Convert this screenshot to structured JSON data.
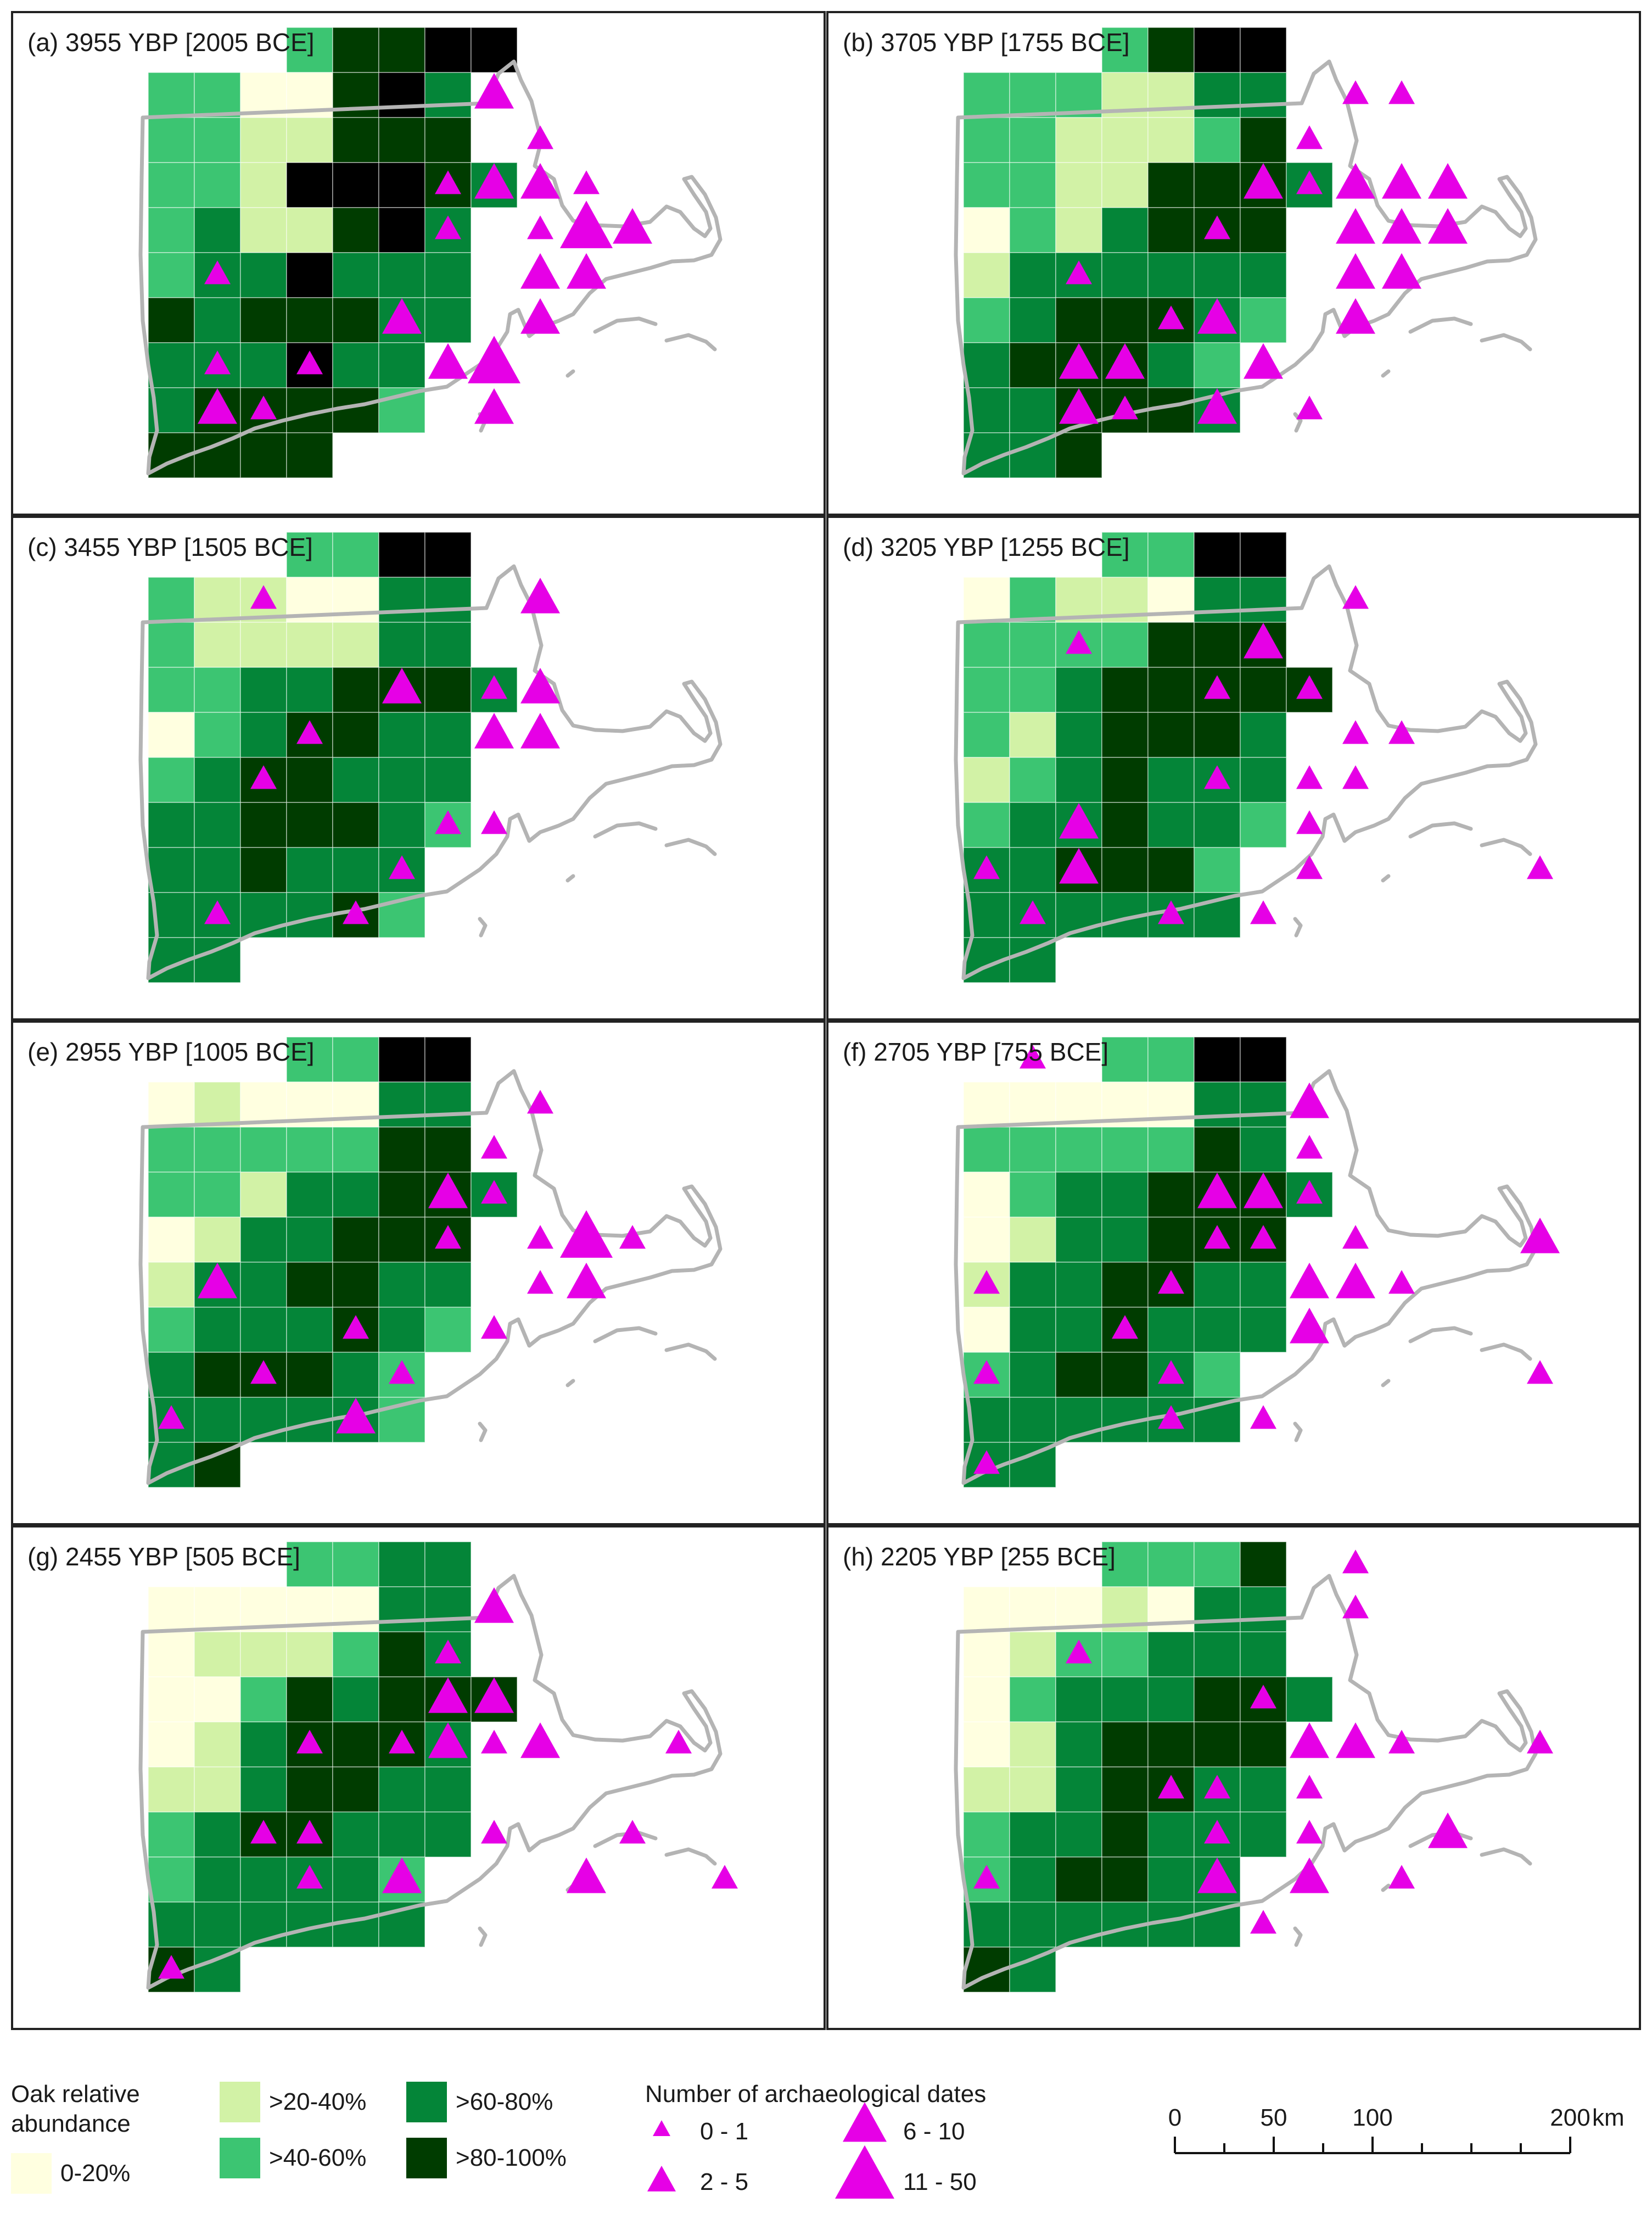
{
  "panels": [
    {
      "label": "(a) 3955 YBP [2005 BCE]",
      "grid": [
        "...35566",
        "3311564",
        "3322555.",
        "33266654.",
        "3422564",
        "3446444",
        "5455544",
        "444644",
        "455553",
        "5555"
      ],
      "sites": [
        [
          2,
          8,
          1
        ],
        [
          1,
          7,
          2
        ],
        [
          3,
          6,
          1
        ],
        [
          3,
          7,
          2
        ],
        [
          3,
          8,
          2
        ],
        [
          3,
          9,
          1
        ],
        [
          4,
          6,
          1
        ],
        [
          4,
          8,
          1
        ],
        [
          4,
          9,
          3
        ],
        [
          4,
          10,
          2
        ],
        [
          5,
          8,
          2
        ],
        [
          5,
          9,
          2
        ],
        [
          5,
          1,
          1
        ],
        [
          6,
          8,
          2
        ],
        [
          6,
          5,
          2
        ],
        [
          7,
          1,
          1
        ],
        [
          7,
          3,
          1
        ],
        [
          7,
          6,
          2
        ],
        [
          7,
          7,
          3
        ],
        [
          8,
          1,
          2
        ],
        [
          8,
          2,
          1
        ],
        [
          8,
          7,
          2
        ]
      ]
    },
    {
      "label": "(b) 3705 YBP [1755 BCE]",
      "grid": [
        "...3566",
        "3332244",
        "3322235.",
        "33225554.",
        "1324555",
        "2444444",
        "3455543",
        "455543",
        "445554",
        "445"
      ],
      "sites": [
        [
          1,
          8,
          1
        ],
        [
          1,
          9,
          1
        ],
        [
          2,
          7,
          1
        ],
        [
          3,
          6,
          2
        ],
        [
          3,
          7,
          1
        ],
        [
          3,
          8,
          2
        ],
        [
          3,
          9,
          2
        ],
        [
          3,
          10,
          2
        ],
        [
          4,
          5,
          1
        ],
        [
          4,
          8,
          2
        ],
        [
          4,
          9,
          2
        ],
        [
          4,
          10,
          2
        ],
        [
          5,
          2,
          1
        ],
        [
          5,
          8,
          2
        ],
        [
          5,
          9,
          2
        ],
        [
          6,
          4,
          1
        ],
        [
          6,
          5,
          2
        ],
        [
          6,
          8,
          2
        ],
        [
          7,
          2,
          2
        ],
        [
          7,
          3,
          2
        ],
        [
          7,
          6,
          2
        ],
        [
          8,
          2,
          2
        ],
        [
          8,
          3,
          1
        ],
        [
          8,
          5,
          2
        ],
        [
          8,
          7,
          1
        ]
      ]
    },
    {
      "label": "(c) 3455 YBP [1505 BCE]",
      "grid": [
        "...3366",
        "3221144",
        "3222244",
        "33445554.",
        "1345544",
        "3455444",
        "4455543",
        "445444",
        "444453",
        "44"
      ],
      "sites": [
        [
          1,
          2,
          1
        ],
        [
          1,
          8,
          2
        ],
        [
          3,
          5,
          2
        ],
        [
          3,
          7,
          1
        ],
        [
          3,
          8,
          2
        ],
        [
          4,
          3,
          1
        ],
        [
          4,
          7,
          2
        ],
        [
          4,
          8,
          2
        ],
        [
          5,
          2,
          1
        ],
        [
          6,
          6,
          1
        ],
        [
          6,
          7,
          1
        ],
        [
          7,
          5,
          1
        ],
        [
          8,
          1,
          1
        ],
        [
          8,
          4,
          1
        ]
      ]
    },
    {
      "label": "(d) 3205 YBP [1255 BCE]",
      "grid": [
        "...3366",
        "1322144",
        "3333555",
        "33455555.",
        "3245554",
        "2345444",
        "3445443",
        "445553",
        "444444",
        "44"
      ],
      "sites": [
        [
          1,
          8,
          1
        ],
        [
          2,
          2,
          1
        ],
        [
          2,
          6,
          2
        ],
        [
          3,
          5,
          1
        ],
        [
          3,
          7,
          1
        ],
        [
          4,
          8,
          1
        ],
        [
          4,
          9,
          1
        ],
        [
          5,
          5,
          1
        ],
        [
          5,
          7,
          1
        ],
        [
          5,
          8,
          1
        ],
        [
          6,
          2,
          2
        ],
        [
          6,
          7,
          1
        ],
        [
          7,
          0,
          1
        ],
        [
          7,
          2,
          2
        ],
        [
          7,
          7,
          1
        ],
        [
          8,
          1,
          1
        ],
        [
          8,
          4,
          1
        ],
        [
          8,
          6,
          1
        ],
        [
          7,
          12,
          1
        ]
      ]
    },
    {
      "label": "(e) 2955 YBP [1005 BCE]",
      "grid": [
        "...3366",
        "1211144",
        "3333355",
        "33244554.",
        "1244555",
        "2445544",
        "3444543",
        "455543",
        "444443",
        "45"
      ],
      "sites": [
        [
          1,
          8,
          1
        ],
        [
          2,
          7,
          1
        ],
        [
          3,
          6,
          2
        ],
        [
          3,
          7,
          1
        ],
        [
          4,
          6,
          1
        ],
        [
          4,
          8,
          1
        ],
        [
          4,
          9,
          3
        ],
        [
          4,
          10,
          1
        ],
        [
          5,
          1,
          2
        ],
        [
          5,
          8,
          1
        ],
        [
          5,
          9,
          2
        ],
        [
          6,
          4,
          1
        ],
        [
          6,
          7,
          1
        ],
        [
          7,
          2,
          1
        ],
        [
          7,
          5,
          1
        ],
        [
          8,
          4,
          2
        ],
        [
          8,
          0,
          1
        ]
      ]
    },
    {
      "label": "(f) 2705 YBP [755 BCE]",
      "grid": [
        "...3366",
        "1111144",
        "3333354",
        "13445554.",
        "1244555",
        "2445544",
        "1445444",
        "345543",
        "444444",
        "44"
      ],
      "sites": [
        [
          0,
          1,
          1
        ],
        [
          1,
          7,
          2
        ],
        [
          2,
          7,
          1
        ],
        [
          3,
          5,
          2
        ],
        [
          3,
          6,
          2
        ],
        [
          3,
          7,
          1
        ],
        [
          4,
          5,
          1
        ],
        [
          4,
          6,
          1
        ],
        [
          4,
          8,
          1
        ],
        [
          4,
          12,
          2
        ],
        [
          5,
          0,
          1
        ],
        [
          5,
          4,
          1
        ],
        [
          5,
          7,
          2
        ],
        [
          5,
          8,
          2
        ],
        [
          5,
          9,
          1
        ],
        [
          6,
          3,
          1
        ],
        [
          6,
          7,
          2
        ],
        [
          7,
          0,
          1
        ],
        [
          7,
          4,
          1
        ],
        [
          7,
          12,
          1
        ],
        [
          8,
          4,
          1
        ],
        [
          8,
          6,
          1
        ],
        [
          9,
          0,
          1
        ]
      ]
    },
    {
      "label": "(g) 2455 YBP [505 BCE]",
      "grid": [
        "...3344",
        "1111144",
        "1222354",
        "11354555.",
        "1245554",
        "2245544",
        "3455444",
        "344443",
        "444444",
        "54"
      ],
      "sites": [
        [
          1,
          7,
          2
        ],
        [
          2,
          6,
          1
        ],
        [
          3,
          6,
          2
        ],
        [
          3,
          7,
          2
        ],
        [
          4,
          3,
          1
        ],
        [
          4,
          5,
          1
        ],
        [
          4,
          6,
          2
        ],
        [
          4,
          7,
          1
        ],
        [
          4,
          8,
          2
        ],
        [
          4,
          11,
          1
        ],
        [
          6,
          2,
          1
        ],
        [
          6,
          3,
          1
        ],
        [
          6,
          7,
          1
        ],
        [
          6,
          10,
          1
        ],
        [
          7,
          3,
          1
        ],
        [
          7,
          5,
          2
        ],
        [
          7,
          9,
          2
        ],
        [
          7,
          12,
          1
        ],
        [
          9,
          0,
          1
        ]
      ]
    },
    {
      "label": "(h) 2205 YBP [255 BCE]",
      "grid": [
        "...3335",
        "1112144",
        "1233444",
        "13444554.",
        "1245555",
        "2245544",
        "3445444",
        "345544",
        "444444",
        "54"
      ],
      "sites": [
        [
          0,
          8,
          1
        ],
        [
          1,
          8,
          1
        ],
        [
          2,
          2,
          1
        ],
        [
          3,
          6,
          1
        ],
        [
          4,
          7,
          2
        ],
        [
          4,
          8,
          2
        ],
        [
          4,
          9,
          1
        ],
        [
          4,
          12,
          1
        ],
        [
          5,
          4,
          1
        ],
        [
          5,
          5,
          1
        ],
        [
          5,
          7,
          1
        ],
        [
          6,
          5,
          1
        ],
        [
          6,
          7,
          1
        ],
        [
          6,
          10,
          2
        ],
        [
          7,
          0,
          1
        ],
        [
          7,
          5,
          2
        ],
        [
          7,
          7,
          2
        ],
        [
          7,
          9,
          1
        ],
        [
          8,
          6,
          1
        ]
      ]
    }
  ],
  "legend": {
    "oak_title_line1": "Oak relative",
    "oak_title_line2": "abundance",
    "classes": [
      {
        "label": "0-20%",
        "color": "#ffffe0"
      },
      {
        "label": ">20-40%",
        "color": "#d2f2a6"
      },
      {
        "label": ">40-60%",
        "color": "#3cc572"
      },
      {
        "label": ">60-80%",
        "color": "#048538"
      },
      {
        "label": ">80-100%",
        "color": "#003c00"
      }
    ],
    "dates_title": "Number of archaeological dates",
    "date_classes": [
      "0 - 1",
      "2 - 5",
      "6 - 10",
      "11 - 50"
    ],
    "marker_color": "#e600e6",
    "scale_ticks": [
      "0",
      "50",
      "100",
      "200"
    ],
    "scale_unit": "km"
  },
  "coastline_color": "#b4b4b4"
}
